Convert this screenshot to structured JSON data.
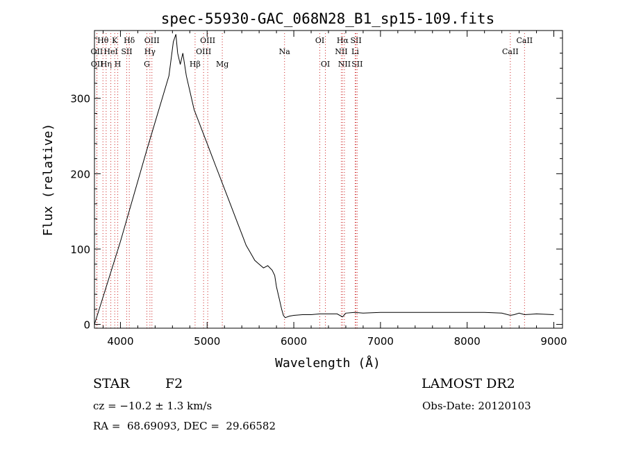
{
  "chart_data": {
    "type": "line",
    "title": "spec-55930-GAC_068N28_B1_sp15-109.fits",
    "xlabel": "Wavelength (Å)",
    "ylabel": "Flux (relative)",
    "xlim": [
      3700,
      9100
    ],
    "ylim": [
      -5,
      390
    ],
    "xticks": [
      4000,
      5000,
      6000,
      7000,
      8000,
      9000
    ],
    "yticks": [
      0,
      100,
      200,
      300
    ],
    "grid": false,
    "series": [
      {
        "x": [
          3700,
          4000,
          4300,
          4560,
          4610,
          4640,
          4660,
          4690,
          4720,
          4760,
          4800,
          4850,
          4900,
          4950,
          5000,
          5050,
          5100,
          5150,
          5200,
          5250,
          5300,
          5350,
          5400,
          5450,
          5500,
          5550,
          5600,
          5650,
          5700,
          5750,
          5780,
          5800,
          5830,
          5860,
          5880,
          5900,
          5950,
          6000,
          6100,
          6200,
          6300,
          6400,
          6500,
          6563,
          6600,
          6700,
          6800,
          7000,
          7200,
          7400,
          7600,
          7800,
          8000,
          8200,
          8400,
          8498,
          8542,
          8600,
          8662,
          8800,
          9000
        ],
        "y": [
          0,
          110,
          230,
          330,
          375,
          385,
          360,
          345,
          360,
          330,
          310,
          285,
          270,
          255,
          240,
          225,
          210,
          195,
          180,
          165,
          150,
          135,
          120,
          105,
          95,
          85,
          80,
          75,
          78,
          72,
          65,
          50,
          35,
          20,
          12,
          9,
          11,
          12,
          13,
          13,
          14,
          14,
          14,
          10,
          15,
          16,
          15,
          16,
          16,
          16,
          16,
          16,
          16,
          16,
          15,
          12,
          13,
          15,
          13,
          14,
          13
        ]
      }
    ],
    "lines": [
      {
        "name": "Hθ",
        "x": 3798,
        "row": 0
      },
      {
        "name": "OII",
        "x": 3727,
        "row": 1
      },
      {
        "name": "OII",
        "x": 3729,
        "row": 2
      },
      {
        "name": "Hη",
        "x": 3835,
        "row": 2
      },
      {
        "name": "K",
        "x": 3934,
        "row": 0
      },
      {
        "name": "HeI",
        "x": 3889,
        "row": 1
      },
      {
        "name": "H",
        "x": 3969,
        "row": 2
      },
      {
        "name": "SII",
        "x": 4072,
        "row": 1
      },
      {
        "name": "Hδ",
        "x": 4102,
        "row": 0
      },
      {
        "name": "OIII",
        "x": 4363,
        "row": 0
      },
      {
        "name": "Hγ",
        "x": 4340,
        "row": 1
      },
      {
        "name": "G",
        "x": 4305,
        "row": 2
      },
      {
        "name": "OIII",
        "x": 5007,
        "row": 0
      },
      {
        "name": "OIII",
        "x": 4959,
        "row": 1
      },
      {
        "name": "Hβ",
        "x": 4861,
        "row": 2
      },
      {
        "name": "Mg",
        "x": 5175,
        "row": 2
      },
      {
        "name": "Na",
        "x": 5893,
        "row": 1
      },
      {
        "name": "OI",
        "x": 6300,
        "row": 0
      },
      {
        "name": "OI",
        "x": 6364,
        "row": 2
      },
      {
        "name": "Hα",
        "x": 6563,
        "row": 0
      },
      {
        "name": "NII",
        "x": 6548,
        "row": 1
      },
      {
        "name": "NII",
        "x": 6584,
        "row": 2
      },
      {
        "name": "SII",
        "x": 6717,
        "row": 0
      },
      {
        "name": "SII",
        "x": 6731,
        "row": 2
      },
      {
        "name": "Li",
        "x": 6708,
        "row": 1
      },
      {
        "name": "CaII",
        "x": 8498,
        "row": 1
      },
      {
        "name": "CaII",
        "x": 8662,
        "row": 0
      }
    ]
  },
  "info": {
    "object_class": "STAR",
    "subclass": "F2",
    "survey": "LAMOST DR2",
    "redshift": "cz = −10.2 ± 1.3 km/s",
    "obs_date": "Obs-Date: 20120103",
    "coords": "RA =  68.69093, DEC =  29.66582"
  }
}
